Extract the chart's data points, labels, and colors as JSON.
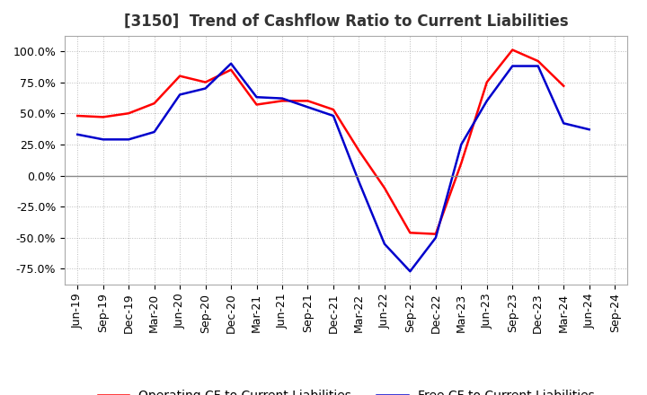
{
  "title": "[3150]  Trend of Cashflow Ratio to Current Liabilities",
  "x_labels": [
    "Jun-19",
    "Sep-19",
    "Dec-19",
    "Mar-20",
    "Jun-20",
    "Sep-20",
    "Dec-20",
    "Mar-21",
    "Jun-21",
    "Sep-21",
    "Dec-21",
    "Mar-22",
    "Jun-22",
    "Sep-22",
    "Dec-22",
    "Mar-23",
    "Jun-23",
    "Sep-23",
    "Dec-23",
    "Mar-24",
    "Jun-24",
    "Sep-24"
  ],
  "operating_cf": [
    0.48,
    0.47,
    0.5,
    0.58,
    0.8,
    0.75,
    0.85,
    0.57,
    0.6,
    0.6,
    0.53,
    0.2,
    -0.1,
    -0.46,
    -0.47,
    0.1,
    0.75,
    1.01,
    0.92,
    0.72,
    null,
    null
  ],
  "free_cf": [
    0.33,
    0.29,
    0.29,
    0.35,
    0.65,
    0.7,
    0.9,
    0.63,
    0.62,
    0.55,
    0.48,
    -0.05,
    -0.55,
    -0.77,
    -0.5,
    0.25,
    0.6,
    0.88,
    0.88,
    0.42,
    0.37,
    null
  ],
  "ylim": [
    -0.875,
    1.125
  ],
  "yticks": [
    -0.75,
    -0.5,
    -0.25,
    0.0,
    0.25,
    0.5,
    0.75,
    1.0
  ],
  "operating_color": "#FF0000",
  "free_color": "#0000CC",
  "background_color": "#FFFFFF",
  "plot_bg_color": "#FFFFFF",
  "grid_color": "#BBBBBB",
  "title_fontsize": 12,
  "tick_fontsize": 9,
  "legend_fontsize": 10
}
